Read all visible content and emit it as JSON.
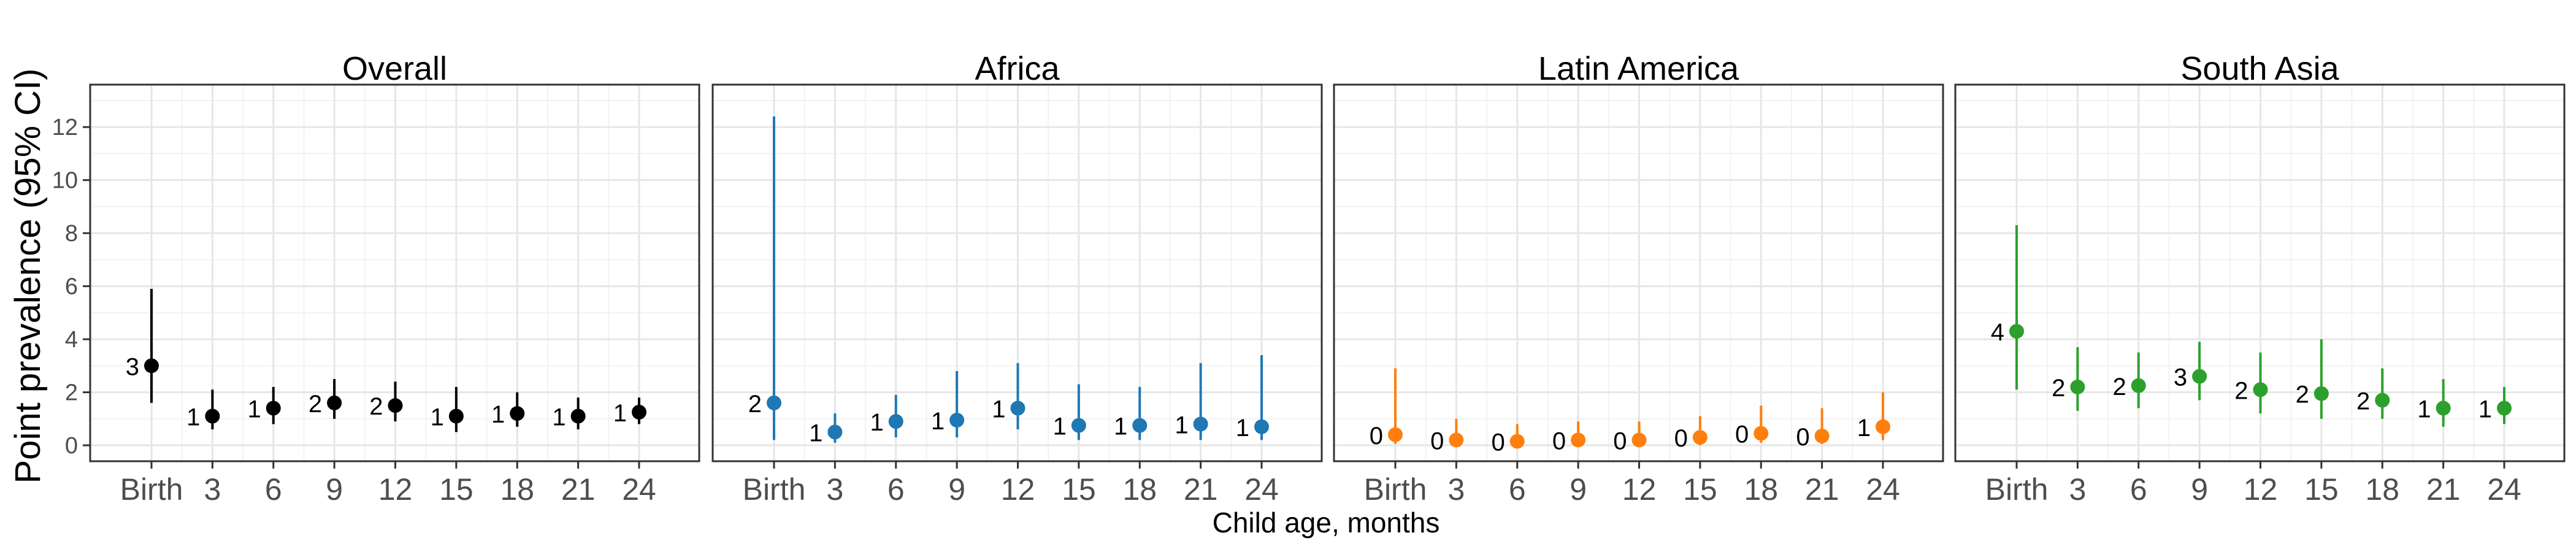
{
  "chart_data": {
    "type": "scatter",
    "subtype": "point-with-error-bars, faceted",
    "xlabel": "Child age, months",
    "ylabel": "Point prevalence (95% CI)",
    "categories": [
      "Birth",
      "3",
      "6",
      "9",
      "12",
      "15",
      "18",
      "21",
      "24"
    ],
    "ylim": [
      -0.6,
      13.6
    ],
    "yticks": [
      0,
      2,
      4,
      6,
      8,
      10,
      12
    ],
    "grid": true,
    "legend": "none",
    "panels": [
      {
        "title": "Overall",
        "color": "#000000",
        "values": [
          3.0,
          1.1,
          1.4,
          1.6,
          1.5,
          1.1,
          1.2,
          1.1,
          1.25
        ],
        "lower": [
          1.6,
          0.6,
          0.8,
          1.0,
          0.9,
          0.5,
          0.7,
          0.6,
          0.8
        ],
        "upper": [
          5.9,
          2.1,
          2.2,
          2.5,
          2.4,
          2.2,
          2.0,
          1.8,
          1.8
        ],
        "labels": [
          "3",
          "1",
          "1",
          "2",
          "2",
          "1",
          "1",
          "1",
          "1"
        ]
      },
      {
        "title": "Africa",
        "color": "#1f77b4",
        "values": [
          1.6,
          0.5,
          0.9,
          0.95,
          1.4,
          0.75,
          0.75,
          0.8,
          0.7
        ],
        "lower": [
          0.2,
          0.1,
          0.3,
          0.3,
          0.6,
          0.2,
          0.2,
          0.2,
          0.2
        ],
        "upper": [
          12.4,
          1.2,
          1.9,
          2.8,
          3.1,
          2.3,
          2.2,
          3.1,
          3.4
        ],
        "labels": [
          "2",
          "1",
          "1",
          "1",
          "1",
          "1",
          "1",
          "1",
          "1"
        ]
      },
      {
        "title": "Latin America",
        "color": "#ff7f0e",
        "values": [
          0.4,
          0.2,
          0.15,
          0.2,
          0.2,
          0.3,
          0.45,
          0.35,
          0.7
        ],
        "lower": [
          0.05,
          0.0,
          0.0,
          0.0,
          0.0,
          0.0,
          0.1,
          0.05,
          0.2
        ],
        "upper": [
          2.9,
          1.0,
          0.8,
          0.9,
          0.9,
          1.1,
          1.5,
          1.4,
          2.0
        ],
        "labels": [
          "0",
          "0",
          "0",
          "0",
          "0",
          "0",
          "0",
          "0",
          "1"
        ]
      },
      {
        "title": "South Asia",
        "color": "#2ca02c",
        "values": [
          4.3,
          2.2,
          2.25,
          2.6,
          2.1,
          1.95,
          1.7,
          1.4,
          1.4
        ],
        "lower": [
          2.1,
          1.3,
          1.4,
          1.7,
          1.2,
          1.0,
          1.0,
          0.7,
          0.8
        ],
        "upper": [
          8.3,
          3.7,
          3.5,
          3.9,
          3.5,
          4.0,
          2.9,
          2.5,
          2.2
        ],
        "labels": [
          "4",
          "2",
          "2",
          "3",
          "2",
          "2",
          "2",
          "1",
          "1"
        ]
      }
    ]
  }
}
